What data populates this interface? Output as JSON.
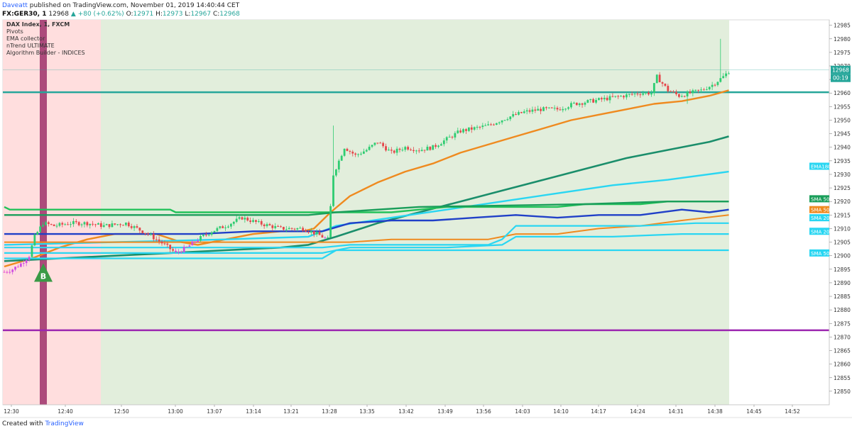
{
  "header": {
    "author": "Daveatt",
    "published_text": "published on TradingView.com, November 01, 2019 14:40:44 CET",
    "symbol": "FX:GER30, 1",
    "last": "12968",
    "change": "+80 (+0.62%)",
    "ohlc": {
      "o_label": "O:",
      "o": "12971",
      "h_label": "H:",
      "h": "12973",
      "l_label": "L:",
      "l": "12967",
      "c_label": "C:",
      "c": "12968"
    }
  },
  "footer": {
    "text": "Created with",
    "brand": "TradingView"
  },
  "colors": {
    "up": "#2ecc71",
    "down": "#e5474b",
    "pink_zone": "#ffdede",
    "green_zone": "#e2eedc",
    "teal_line": "#26a69a",
    "purple_line": "#9c27b0",
    "price_tag": "#26a69a"
  },
  "chart_data": {
    "type": "candlestick",
    "legend": [
      "DAX Index, 1, FXCM",
      "Pivots",
      "EMA collector",
      "nTrend ULTIMATE",
      "Algorithm Builder - INDICES"
    ],
    "y_ticks": [
      12850,
      12855,
      12860,
      12865,
      12870,
      12875,
      12880,
      12885,
      12890,
      12895,
      12900,
      12905,
      12910,
      12915,
      12920,
      12925,
      12930,
      12935,
      12940,
      12945,
      12950,
      12955,
      12960,
      12965,
      12970,
      12975,
      12980,
      12985
    ],
    "ylim": [
      12845,
      12987
    ],
    "x_ticks": [
      "12:30",
      "12:40",
      "12:50",
      "13:00",
      "13:07",
      "13:14",
      "13:21",
      "13:28",
      "13:35",
      "13:42",
      "13:49",
      "13:56",
      "14:03",
      "14:10",
      "14:17",
      "14:24",
      "14:31",
      "14:38",
      "14:45",
      "14:52"
    ],
    "current_price": "12968",
    "countdown": "00:19",
    "horizontal_levels": [
      {
        "y": 12960.3,
        "color": "teal"
      },
      {
        "y": 12872.5,
        "color": "purple"
      }
    ],
    "level_labels": [
      {
        "text": "EMA180",
        "y": 12933,
        "color": "#29d6f2"
      },
      {
        "text": "SMA 50",
        "y": 12921,
        "color": "#1a9e5a"
      },
      {
        "text": "SMA 50",
        "y": 12917,
        "color": "#ef8a1f"
      },
      {
        "text": "SMA 20",
        "y": 12914,
        "color": "#29d6f2"
      },
      {
        "text": "SMA 20",
        "y": 12909,
        "color": "#29d6f2"
      },
      {
        "text": "SMA 50",
        "y": 12901,
        "color": "#29d6f2"
      }
    ],
    "signal": {
      "text": "B",
      "time_index": 10
    },
    "series": [
      {
        "kind": "orange",
        "color": "#ef8a1f",
        "width": 2.4,
        "points": [
          [
            0,
            12896
          ],
          [
            10,
            12899
          ],
          [
            20,
            12903
          ],
          [
            30,
            12906
          ],
          [
            40,
            12908
          ],
          [
            55,
            12908
          ],
          [
            64,
            12905
          ],
          [
            70,
            12904
          ],
          [
            80,
            12906
          ],
          [
            90,
            12908
          ],
          [
            100,
            12909
          ],
          [
            108,
            12909
          ],
          [
            112,
            12910
          ],
          [
            118,
            12916
          ],
          [
            125,
            12922
          ],
          [
            135,
            12927
          ],
          [
            145,
            12931
          ],
          [
            155,
            12934
          ],
          [
            165,
            12938
          ],
          [
            175,
            12941
          ],
          [
            185,
            12944
          ],
          [
            195,
            12947
          ],
          [
            205,
            12950
          ],
          [
            215,
            12952
          ],
          [
            225,
            12954
          ],
          [
            235,
            12956
          ],
          [
            245,
            12957
          ],
          [
            255,
            12959
          ],
          [
            262,
            12961
          ]
        ]
      },
      {
        "kind": "dark-green",
        "color": "#1a8e6b",
        "width": 2.6,
        "points": [
          [
            0,
            12898
          ],
          [
            20,
            12899
          ],
          [
            40,
            12900
          ],
          [
            60,
            12901
          ],
          [
            80,
            12902
          ],
          [
            100,
            12903
          ],
          [
            110,
            12904
          ],
          [
            120,
            12907
          ],
          [
            135,
            12912
          ],
          [
            150,
            12916
          ],
          [
            165,
            12920
          ],
          [
            180,
            12924
          ],
          [
            195,
            12928
          ],
          [
            210,
            12932
          ],
          [
            225,
            12936
          ],
          [
            240,
            12939
          ],
          [
            255,
            12942
          ],
          [
            262,
            12944
          ]
        ]
      },
      {
        "kind": "light-blue",
        "color": "#29d6f2",
        "width": 2.4,
        "points": [
          [
            0,
            12904
          ],
          [
            40,
            12905
          ],
          [
            80,
            12906
          ],
          [
            110,
            12907
          ],
          [
            120,
            12911
          ],
          [
            140,
            12914
          ],
          [
            160,
            12917
          ],
          [
            180,
            12920
          ],
          [
            200,
            12923
          ],
          [
            220,
            12926
          ],
          [
            240,
            12928
          ],
          [
            262,
            12931
          ]
        ]
      },
      {
        "kind": "green-flat",
        "color": "#22c25a",
        "width": 2.4,
        "points": [
          [
            0,
            12918
          ],
          [
            2,
            12917
          ],
          [
            60,
            12917
          ],
          [
            62,
            12916
          ],
          [
            140,
            12916
          ],
          [
            150,
            12917
          ],
          [
            160,
            12918
          ],
          [
            200,
            12918
          ],
          [
            210,
            12919
          ],
          [
            230,
            12919
          ],
          [
            240,
            12920
          ],
          [
            262,
            12920
          ]
        ]
      },
      {
        "kind": "dark-green-flat",
        "color": "#1a9e5a",
        "width": 2.4,
        "points": [
          [
            0,
            12915
          ],
          [
            80,
            12915
          ],
          [
            110,
            12915
          ],
          [
            120,
            12916
          ],
          [
            150,
            12918
          ],
          [
            210,
            12919
          ],
          [
            240,
            12920
          ],
          [
            262,
            12920
          ]
        ]
      },
      {
        "kind": "blue-wavy",
        "color": "#2040c8",
        "width": 2.4,
        "points": [
          [
            0,
            12908
          ],
          [
            40,
            12908
          ],
          [
            70,
            12908
          ],
          [
            90,
            12909
          ],
          [
            115,
            12909
          ],
          [
            125,
            12912
          ],
          [
            140,
            12913
          ],
          [
            155,
            12913
          ],
          [
            170,
            12914
          ],
          [
            185,
            12915
          ],
          [
            200,
            12914
          ],
          [
            215,
            12915
          ],
          [
            230,
            12915
          ],
          [
            245,
            12917
          ],
          [
            255,
            12916
          ],
          [
            262,
            12917
          ]
        ]
      },
      {
        "kind": "orange-low",
        "color": "#ef8a1f",
        "width": 2.0,
        "points": [
          [
            0,
            12905
          ],
          [
            60,
            12905
          ],
          [
            110,
            12905
          ],
          [
            125,
            12905
          ],
          [
            140,
            12906
          ],
          [
            160,
            12906
          ],
          [
            175,
            12906
          ],
          [
            180,
            12907
          ],
          [
            185,
            12908
          ],
          [
            200,
            12908
          ],
          [
            215,
            12910
          ],
          [
            230,
            12911
          ],
          [
            245,
            12913
          ],
          [
            262,
            12915
          ]
        ]
      },
      {
        "kind": "cyan-1",
        "color": "#29d6f2",
        "width": 2.2,
        "points": [
          [
            0,
            12903
          ],
          [
            60,
            12903
          ],
          [
            115,
            12903
          ],
          [
            125,
            12904
          ],
          [
            140,
            12904
          ],
          [
            175,
            12904
          ],
          [
            180,
            12906
          ],
          [
            185,
            12911
          ],
          [
            200,
            12911
          ],
          [
            230,
            12911
          ],
          [
            250,
            12912
          ],
          [
            262,
            12912
          ]
        ]
      },
      {
        "kind": "cyan-2",
        "color": "#29d6f2",
        "width": 2.2,
        "points": [
          [
            0,
            12901
          ],
          [
            60,
            12901
          ],
          [
            115,
            12901
          ],
          [
            125,
            12903
          ],
          [
            160,
            12903
          ],
          [
            180,
            12904
          ],
          [
            185,
            12907
          ],
          [
            220,
            12907
          ],
          [
            245,
            12908
          ],
          [
            262,
            12908
          ]
        ]
      },
      {
        "kind": "cyan-3",
        "color": "#29d6f2",
        "width": 2.2,
        "points": [
          [
            0,
            12899
          ],
          [
            60,
            12899
          ],
          [
            115,
            12899
          ],
          [
            120,
            12902
          ],
          [
            150,
            12902
          ],
          [
            185,
            12902
          ],
          [
            200,
            12902
          ],
          [
            262,
            12902
          ]
        ]
      }
    ],
    "candles_note": "1-minute OHLC sequence approximated from the screenshot"
  }
}
